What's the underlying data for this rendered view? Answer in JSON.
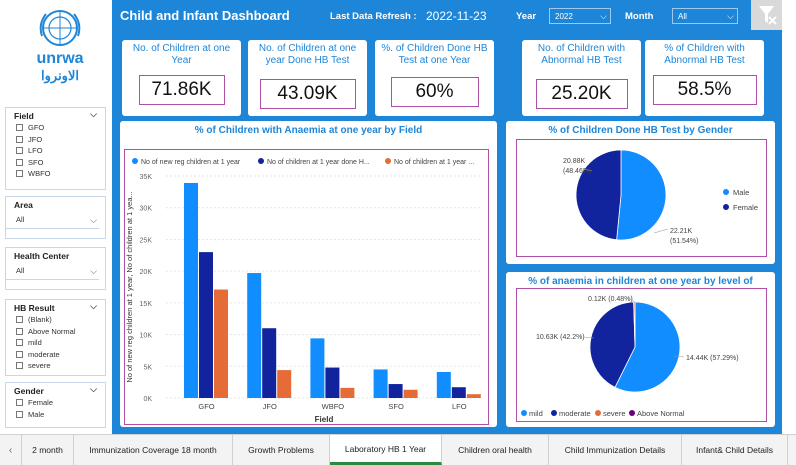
{
  "header": {
    "title": "Child and Infant Dashboard",
    "refresh_label": "Last Data Refresh :",
    "refresh_value": "2022-11-23",
    "year_label": "Year",
    "year_value": "2022",
    "month_label": "Month",
    "month_value": "All"
  },
  "logo": {
    "text_en": "unrwa",
    "text_ar": "الاونروا",
    "brand_color": "#1e86d8"
  },
  "sidebar": {
    "field": {
      "title": "Field",
      "options": [
        "GFO",
        "JFO",
        "LFO",
        "SFO",
        "WBFO"
      ]
    },
    "area": {
      "title": "Area",
      "value": "All"
    },
    "health_center": {
      "title": "Health Center",
      "value": "All"
    },
    "hb_result": {
      "title": "HB Result",
      "options": [
        "(Blank)",
        "Above Normal",
        "mild",
        "moderate",
        "severe"
      ]
    },
    "gender": {
      "title": "Gender",
      "options": [
        "Female",
        "Male"
      ]
    }
  },
  "kpis": [
    {
      "title": "No. of Children at one Year",
      "value": "71.86K"
    },
    {
      "title": "No. of Children at one year Done HB Test",
      "value": "43.09K"
    },
    {
      "title": "%. of Children Done HB Test at one Year",
      "value": "60%"
    },
    {
      "title": "No. of Children with Abnormal HB Test",
      "value": "25.20K"
    },
    {
      "title": "% of Children with Abnormal HB Test",
      "value": "58.5%"
    }
  ],
  "charts": {
    "bar_title": "% of Children with Anaemia at one year by Field",
    "gender_title": "% of Children Done HB Test by Gender",
    "level_title": "% of anaemia in children at one year by level of"
  },
  "chart_data": [
    {
      "type": "bar",
      "title": "% of Children with Anaemia at one year by Field",
      "xlabel": "Field",
      "ylabel": "No of new reg children at 1 year, No of children at 1 yea...",
      "categories": [
        "GFO",
        "JFO",
        "WBFO",
        "SFO",
        "LFO"
      ],
      "ylim": [
        0,
        35000
      ],
      "yticks": [
        "0K",
        "5K",
        "10K",
        "15K",
        "20K",
        "25K",
        "30K",
        "35K"
      ],
      "series": [
        {
          "name": "No of new reg children at 1 year",
          "color": "#118dff",
          "values": [
            33900,
            19700,
            9400,
            4500,
            4100
          ]
        },
        {
          "name": "No of children at 1 year done H...",
          "color": "#12239e",
          "values": [
            23000,
            11000,
            4800,
            2200,
            1700
          ]
        },
        {
          "name": "No of children at 1 year ...",
          "color": "#e66c37",
          "values": [
            17100,
            4400,
            1600,
            1300,
            600
          ]
        }
      ],
      "legend": "top"
    },
    {
      "type": "pie",
      "title": "% of Children Done HB Test by Gender",
      "labels": [
        "Male",
        "Female"
      ],
      "values": [
        22210,
        20880
      ],
      "value_labels": [
        "22.21K\n(51.54%)",
        "20.88K\n(48.46%)"
      ],
      "colors": [
        "#118dff",
        "#12239e"
      ],
      "legend": "right"
    },
    {
      "type": "pie",
      "title": "% of anaemia in children at one year by level of",
      "labels": [
        "mild",
        "moderate",
        "severe",
        "Above Normal"
      ],
      "values": [
        14440,
        10630,
        120,
        0
      ],
      "value_labels": [
        "14.44K (57.29%)",
        "10.63K (42.2%)",
        "0.12K (0.48%)",
        ""
      ],
      "colors": [
        "#118dff",
        "#12239e",
        "#e66c37",
        "#6b007b"
      ],
      "legend": "bottom"
    }
  ],
  "tabs": [
    "2 month",
    "Immunization Coverage 18 month",
    "Growth Problems",
    "Laboratory HB 1 Year",
    "Children oral health",
    "Child Immunization Details",
    "Infant& Child Details"
  ],
  "active_tab": "Laboratory HB 1 Year"
}
